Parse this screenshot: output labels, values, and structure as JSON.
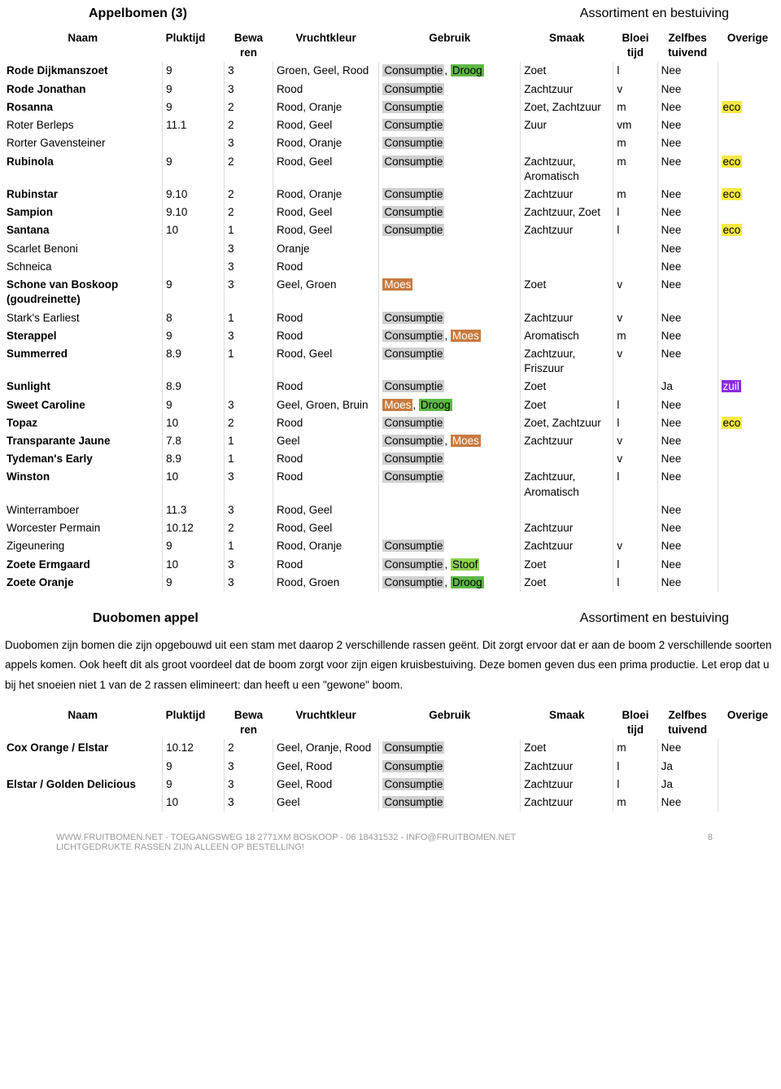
{
  "header1": {
    "left": "Appelbomen (3)",
    "right": "Assortiment en bestuiving"
  },
  "columns": {
    "naam": "Naam",
    "pluk": "Pluktijd",
    "bewa": "Bewa\nren",
    "kleur": "Vruchtkleur",
    "gebruik": "Gebruik",
    "smaak": "Smaak",
    "bloei": "Bloei\ntijd",
    "zelf": "Zelfbes\ntuivend",
    "over": "Overige"
  },
  "rows1": [
    {
      "w": "bold",
      "naam": "Rode Dijkmanszoet",
      "pluk": "9",
      "bewa": "3",
      "kleur": "Groen, Geel, Rood",
      "gebruik": [
        {
          "t": "Consumptie",
          "c": "gray"
        },
        {
          "t": ", "
        },
        {
          "t": "Droog",
          "c": "green"
        }
      ],
      "smaak": "Zoet",
      "bloei": "l",
      "zelf": "Nee",
      "over": ""
    },
    {
      "w": "bold",
      "naam": "Rode Jonathan",
      "pluk": "9",
      "bewa": "3",
      "kleur": "Rood",
      "gebruik": [
        {
          "t": "Consumptie",
          "c": "gray"
        }
      ],
      "smaak": "Zachtzuur",
      "bloei": "v",
      "zelf": "Nee",
      "over": ""
    },
    {
      "w": "bold",
      "naam": "Rosanna",
      "pluk": "9",
      "bewa": "2",
      "kleur": "Rood, Oranje",
      "gebruik": [
        {
          "t": "Consumptie",
          "c": "gray"
        }
      ],
      "smaak": "Zoet, Zachtzuur",
      "bloei": "m",
      "zelf": "Nee",
      "over": [
        {
          "t": "eco",
          "c": "yellow"
        }
      ]
    },
    {
      "w": "light",
      "naam": "Roter Berleps",
      "pluk": "11.1",
      "bewa": "2",
      "kleur": "Rood, Geel",
      "gebruik": [
        {
          "t": "Consumptie",
          "c": "gray"
        }
      ],
      "smaak": "Zuur",
      "bloei": "vm",
      "zelf": "Nee",
      "over": ""
    },
    {
      "w": "light",
      "naam": "Rorter Gavensteiner",
      "pluk": "",
      "bewa": "3",
      "kleur": "Rood, Oranje",
      "gebruik": [
        {
          "t": "Consumptie",
          "c": "gray"
        }
      ],
      "smaak": "",
      "bloei": "m",
      "zelf": "Nee",
      "over": ""
    },
    {
      "w": "bold",
      "naam": "Rubinola",
      "pluk": "9",
      "bewa": "2",
      "kleur": "Rood, Geel",
      "gebruik": [
        {
          "t": "Consumptie",
          "c": "gray"
        }
      ],
      "smaak": "Zachtzuur, Aromatisch",
      "bloei": "m",
      "zelf": "Nee",
      "over": [
        {
          "t": "eco",
          "c": "yellow"
        }
      ]
    },
    {
      "w": "bold",
      "naam": "Rubinstar",
      "pluk": "9.10",
      "bewa": "2",
      "kleur": "Rood, Oranje",
      "gebruik": [
        {
          "t": "Consumptie",
          "c": "gray"
        }
      ],
      "smaak": "Zachtzuur",
      "bloei": "m",
      "zelf": "Nee",
      "over": [
        {
          "t": "eco",
          "c": "yellow"
        }
      ]
    },
    {
      "w": "bold",
      "naam": "Sampion",
      "pluk": "9.10",
      "bewa": "2",
      "kleur": "Rood, Geel",
      "gebruik": [
        {
          "t": "Consumptie",
          "c": "gray"
        }
      ],
      "smaak": "Zachtzuur, Zoet",
      "bloei": "l",
      "zelf": "Nee",
      "over": ""
    },
    {
      "w": "bold",
      "naam": "Santana",
      "pluk": "10",
      "bewa": "1",
      "kleur": "Rood, Geel",
      "gebruik": [
        {
          "t": "Consumptie",
          "c": "gray"
        }
      ],
      "smaak": "Zachtzuur",
      "bloei": "l",
      "zelf": "Nee",
      "over": [
        {
          "t": "eco",
          "c": "yellow"
        }
      ]
    },
    {
      "w": "light",
      "naam": "Scarlet Benoni",
      "pluk": "",
      "bewa": "3",
      "kleur": "Oranje",
      "gebruik": [],
      "smaak": "",
      "bloei": "",
      "zelf": "Nee",
      "over": ""
    },
    {
      "w": "light",
      "naam": "Schneica",
      "pluk": "",
      "bewa": "3",
      "kleur": "Rood",
      "gebruik": [],
      "smaak": "",
      "bloei": "",
      "zelf": "Nee",
      "over": ""
    },
    {
      "w": "bold",
      "naam": "Schone van Boskoop (goudreinette)",
      "pluk": "9",
      "bewa": "3",
      "kleur": "Geel, Groen",
      "gebruik": [
        {
          "t": "Moes",
          "c": "orange"
        }
      ],
      "smaak": "Zoet",
      "bloei": "v",
      "zelf": "Nee",
      "over": ""
    },
    {
      "w": "light",
      "naam": "Stark's Earliest",
      "pluk": "8",
      "bewa": "1",
      "kleur": "Rood",
      "gebruik": [
        {
          "t": "Consumptie",
          "c": "gray"
        }
      ],
      "smaak": "Zachtzuur",
      "bloei": "v",
      "zelf": "Nee",
      "over": ""
    },
    {
      "w": "bold",
      "naam": "Sterappel",
      "pluk": "9",
      "bewa": "3",
      "kleur": "Rood",
      "gebruik": [
        {
          "t": "Consumptie",
          "c": "gray"
        },
        {
          "t": ", "
        },
        {
          "t": "Moes",
          "c": "orange"
        }
      ],
      "smaak": "Aromatisch",
      "bloei": "m",
      "zelf": "Nee",
      "over": ""
    },
    {
      "w": "bold",
      "naam": "Summerred",
      "pluk": "8.9",
      "bewa": "1",
      "kleur": "Rood, Geel",
      "gebruik": [
        {
          "t": "Consumptie",
          "c": "gray"
        }
      ],
      "smaak": "Zachtzuur, Friszuur",
      "bloei": "v",
      "zelf": "Nee",
      "over": ""
    },
    {
      "w": "bold",
      "naam": "Sunlight",
      "pluk": "8.9",
      "bewa": "",
      "kleur": "Rood",
      "gebruik": [
        {
          "t": "Consumptie",
          "c": "gray"
        }
      ],
      "smaak": "Zoet",
      "bloei": "",
      "zelf": "Ja",
      "over": [
        {
          "t": "zuil",
          "c": "purple"
        }
      ]
    },
    {
      "w": "bold",
      "naam": "Sweet Caroline",
      "pluk": "9",
      "bewa": "3",
      "kleur": "Geel, Groen, Bruin",
      "gebruik": [
        {
          "t": "Moes",
          "c": "orange"
        },
        {
          "t": ", "
        },
        {
          "t": "Droog",
          "c": "green"
        }
      ],
      "smaak": "Zoet",
      "bloei": "l",
      "zelf": "Nee",
      "over": ""
    },
    {
      "w": "bold",
      "naam": "Topaz",
      "pluk": "10",
      "bewa": "2",
      "kleur": "Rood",
      "gebruik": [
        {
          "t": "Consumptie",
          "c": "gray"
        }
      ],
      "smaak": "Zoet, Zachtzuur",
      "bloei": "l",
      "zelf": "Nee",
      "over": [
        {
          "t": "eco",
          "c": "yellow"
        }
      ]
    },
    {
      "w": "bold",
      "naam": "Transparante Jaune",
      "pluk": "7.8",
      "bewa": "1",
      "kleur": "Geel",
      "gebruik": [
        {
          "t": "Consumptie",
          "c": "gray"
        },
        {
          "t": ", "
        },
        {
          "t": "Moes",
          "c": "orange"
        }
      ],
      "smaak": "Zachtzuur",
      "bloei": "v",
      "zelf": "Nee",
      "over": ""
    },
    {
      "w": "bold",
      "naam": "Tydeman's Early",
      "pluk": "8.9",
      "bewa": "1",
      "kleur": "Rood",
      "gebruik": [
        {
          "t": "Consumptie",
          "c": "gray"
        }
      ],
      "smaak": "",
      "bloei": "v",
      "zelf": "Nee",
      "over": ""
    },
    {
      "w": "bold",
      "naam": "Winston",
      "pluk": "10",
      "bewa": "3",
      "kleur": "Rood",
      "gebruik": [
        {
          "t": "Consumptie",
          "c": "gray"
        }
      ],
      "smaak": "Zachtzuur, Aromatisch",
      "bloei": "l",
      "zelf": "Nee",
      "over": ""
    },
    {
      "w": "light",
      "naam": "Winterramboer",
      "pluk": "11.3",
      "bewa": "3",
      "kleur": "Rood, Geel",
      "gebruik": [],
      "smaak": "",
      "bloei": "",
      "zelf": "Nee",
      "over": ""
    },
    {
      "w": "light",
      "naam": "Worcester Permain",
      "pluk": "10.12",
      "bewa": "2",
      "kleur": "Rood, Geel",
      "gebruik": [],
      "smaak": "Zachtzuur",
      "bloei": "",
      "zelf": "Nee",
      "over": ""
    },
    {
      "w": "light",
      "naam": "Zigeunering",
      "pluk": "9",
      "bewa": "1",
      "kleur": "Rood, Oranje",
      "gebruik": [
        {
          "t": "Consumptie",
          "c": "gray"
        }
      ],
      "smaak": "Zachtzuur",
      "bloei": "v",
      "zelf": "Nee",
      "over": ""
    },
    {
      "w": "bold",
      "naam": "Zoete Ermgaard",
      "pluk": "10",
      "bewa": "3",
      "kleur": "Rood",
      "gebruik": [
        {
          "t": "Consumptie",
          "c": "gray"
        },
        {
          "t": ", "
        },
        {
          "t": "Stoof",
          "c": "lime"
        }
      ],
      "smaak": "Zoet",
      "bloei": "l",
      "zelf": "Nee",
      "over": ""
    },
    {
      "w": "bold",
      "naam": "Zoete Oranje",
      "pluk": "9",
      "bewa": "3",
      "kleur": "Rood, Groen",
      "gebruik": [
        {
          "t": "Consumptie",
          "c": "gray"
        },
        {
          "t": ", "
        },
        {
          "t": "Droog",
          "c": "green"
        }
      ],
      "smaak": "Zoet",
      "bloei": "l",
      "zelf": "Nee",
      "over": ""
    }
  ],
  "header2": {
    "left": "Duobomen appel",
    "right": "Assortiment en bestuiving"
  },
  "intro": "Duobomen zijn bomen die zijn opgebouwd uit een stam met daarop 2 verschillende rassen geënt. Dit zorgt ervoor dat er aan de boom 2 verschillende soorten appels komen. Ook heeft dit als groot voordeel dat de boom zorgt voor zijn eigen kruisbestuiving. Deze bomen geven dus een prima productie. Let erop dat u bij het snoeien niet 1 van de 2 rassen elimineert: dan heeft u een \"gewone\" boom.",
  "rows2": [
    {
      "w": "bold",
      "naam": "Cox Orange / Elstar",
      "pluk": "10.12",
      "bewa": "2",
      "kleur": "Geel, Oranje, Rood",
      "gebruik": [
        {
          "t": "Consumptie",
          "c": "gray"
        }
      ],
      "smaak": "Zoet",
      "bloei": "m",
      "zelf": "Nee",
      "over": ""
    },
    {
      "w": "bold",
      "naam": "",
      "pluk": "9",
      "bewa": "3",
      "kleur": "Geel, Rood",
      "gebruik": [
        {
          "t": "Consumptie",
          "c": "gray"
        }
      ],
      "smaak": "Zachtzuur",
      "bloei": "l",
      "zelf": "Ja",
      "over": ""
    },
    {
      "w": "bold",
      "naam": "Elstar / Golden Delicious",
      "pluk": "9",
      "bewa": "3",
      "kleur": "Geel, Rood",
      "gebruik": [
        {
          "t": "Consumptie",
          "c": "gray"
        }
      ],
      "smaak": "Zachtzuur",
      "bloei": "l",
      "zelf": "Ja",
      "over": ""
    },
    {
      "w": "bold",
      "naam": "",
      "pluk": "10",
      "bewa": "3",
      "kleur": "Geel",
      "gebruik": [
        {
          "t": "Consumptie",
          "c": "gray"
        }
      ],
      "smaak": "Zachtzuur",
      "bloei": "m",
      "zelf": "Nee",
      "over": ""
    }
  ],
  "footer": {
    "line1": "WWW.FRUITBOMEN.NET - TOEGANGSWEG 18 2771XM BOSKOOP - 06 18431532 - INFO@FRUITBOMEN.NET",
    "line2": "LICHTGEDRUKTE RASSEN ZIJN ALLEEN OP BESTELLING!",
    "page": "8"
  }
}
